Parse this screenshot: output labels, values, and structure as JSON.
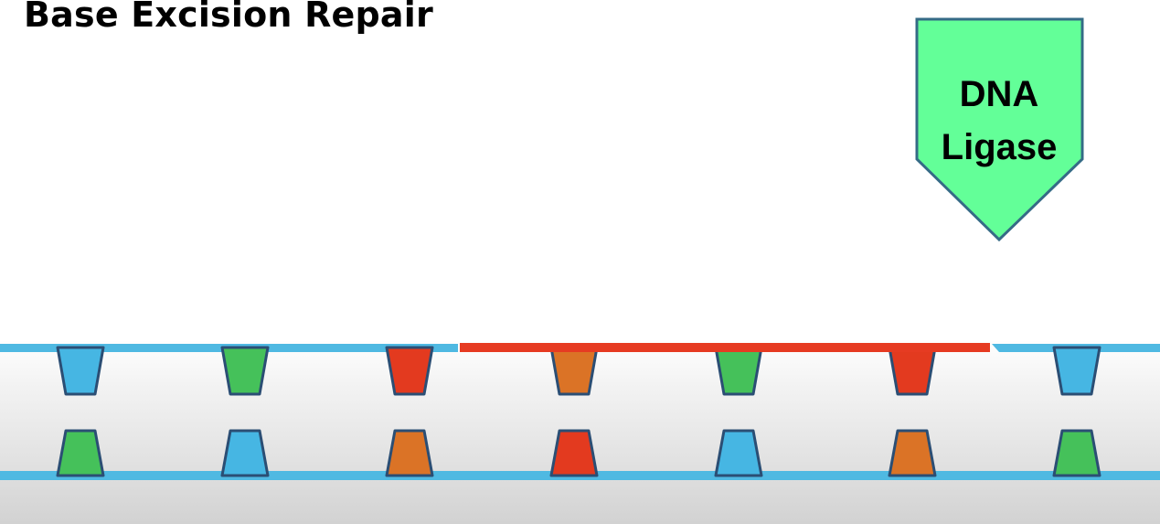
{
  "title": "Base Excision Repair",
  "enzyme": {
    "label_line1": "DNA",
    "label_line2": "Ligase",
    "fill_color": "#63ff98",
    "stroke_color": "#356b86"
  },
  "colors": {
    "strand": "#4fb9e2",
    "new_strand": "#e63b22",
    "outline": "#2b4e74",
    "base_blue": "#46b6e3",
    "base_green": "#45c15a",
    "base_red": "#e33a1f",
    "base_orange": "#db7326"
  },
  "top_bases": [
    "blue",
    "green",
    "red",
    "orange",
    "green",
    "red",
    "blue"
  ],
  "bottom_bases": [
    "green",
    "blue",
    "orange",
    "red",
    "blue",
    "orange",
    "green"
  ]
}
